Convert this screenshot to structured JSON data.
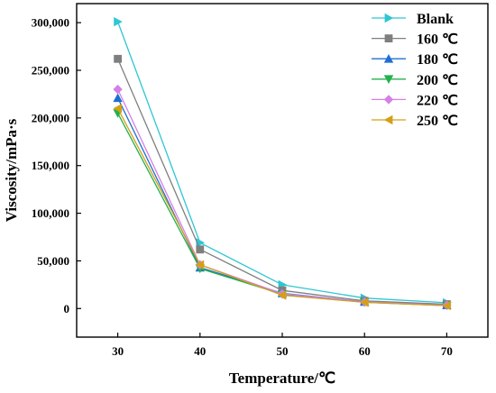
{
  "chart_data": {
    "type": "line",
    "title": "",
    "xlabel": "Temperature/℃",
    "ylabel": "Viscosity/mPa·s",
    "x": [
      30,
      40,
      50,
      60,
      70
    ],
    "x_ticks": [
      "30",
      "40",
      "50",
      "60",
      "70"
    ],
    "xlim": [
      25,
      75
    ],
    "ylim": [
      -30000,
      320000
    ],
    "y_ticks": [
      0,
      50000,
      100000,
      150000,
      200000,
      250000,
      300000
    ],
    "y_tick_labels": [
      "0",
      "50,000",
      "100,000",
      "150,000",
      "200,000",
      "250,000",
      "300,000"
    ],
    "grid": false,
    "legend_position": "top-right",
    "series": [
      {
        "name": "Blank",
        "marker": "triangle-right",
        "color": "#2EC6D2",
        "values": [
          301000,
          69000,
          25000,
          11000,
          6000
        ]
      },
      {
        "name": "160 ℃",
        "marker": "square",
        "color": "#7F7F7F",
        "values": [
          262000,
          62000,
          19000,
          8000,
          4500
        ]
      },
      {
        "name": "180 ℃",
        "marker": "triangle-up",
        "color": "#1F6FD1",
        "values": [
          221000,
          43000,
          16000,
          7000,
          3500
        ]
      },
      {
        "name": "200 ℃",
        "marker": "triangle-down",
        "color": "#22B14C",
        "values": [
          205000,
          42000,
          15000,
          6500,
          3000
        ]
      },
      {
        "name": "220 ℃",
        "marker": "diamond",
        "color": "#D57FE8",
        "values": [
          230000,
          46000,
          15500,
          7000,
          3500
        ]
      },
      {
        "name": "250 ℃",
        "marker": "triangle-left",
        "color": "#D4A017",
        "values": [
          210000,
          46000,
          14000,
          6500,
          3000
        ]
      }
    ]
  }
}
